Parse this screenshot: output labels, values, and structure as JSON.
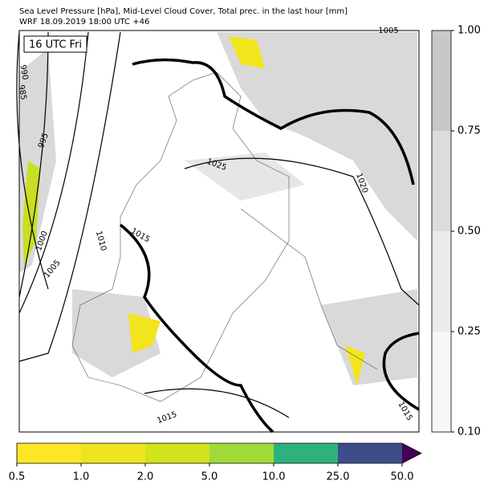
{
  "header": {
    "title_lines": [
      "Sea Level Pressure [hPa], Mid-Level Cloud Cover, Total prec. in the last hour [mm]",
      "WRF 18.09.2019 18:00 UTC +46"
    ]
  },
  "map": {
    "time_label": "16 UTC Fri",
    "contour_labels": [
      "1005",
      "990",
      "985",
      "995",
      "1000",
      "1005",
      "1010",
      "1015",
      "1025",
      "1020",
      "1015",
      "1015"
    ]
  },
  "cloud_colorbar": {
    "ticks": [
      "0.10",
      "0.25",
      "0.50",
      "0.75",
      "1.00"
    ]
  },
  "precip_colorbar": {
    "ticks": [
      "0.5",
      "1.0",
      "2.0",
      "5.0",
      "10.0",
      "25.0",
      "50.0"
    ]
  }
}
